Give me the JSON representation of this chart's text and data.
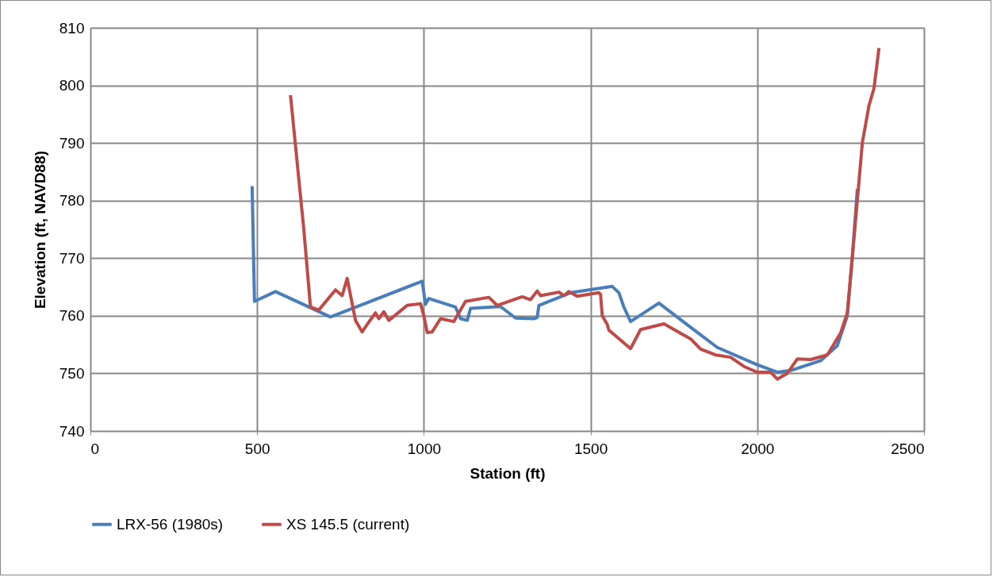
{
  "chart_data": {
    "type": "line",
    "xlabel": "Station (ft)",
    "ylabel": "Elevation (ft, NAVD88)",
    "xlim": [
      0,
      2500
    ],
    "xticks": [
      0,
      500,
      1000,
      1500,
      2000,
      2500
    ],
    "ylim": [
      740,
      810
    ],
    "yticks": [
      740,
      750,
      760,
      770,
      780,
      790,
      800,
      810
    ],
    "grid": true,
    "legend": "bottom",
    "series": [
      {
        "name": "LRX-56 (1980s)",
        "color": "#4a7ebb",
        "x": [
          485,
          492,
          555,
          720,
          995,
          1005,
          1015,
          1095,
          1110,
          1130,
          1140,
          1230,
          1275,
          1330,
          1340,
          1345,
          1440,
          1565,
          1585,
          1600,
          1620,
          1705,
          1800,
          1880,
          2000,
          2060,
          2100,
          2190,
          2240,
          2270,
          2285,
          2300
        ],
        "values": [
          782.5,
          762.5,
          764.2,
          759.8,
          766,
          762,
          763,
          761.5,
          759.5,
          759.2,
          761.3,
          761.6,
          759.6,
          759.5,
          759.7,
          761.8,
          764,
          765.1,
          764,
          761.5,
          759,
          762.2,
          758,
          754.5,
          751.5,
          750.2,
          750.5,
          752.2,
          754.8,
          760,
          770,
          782
        ]
      },
      {
        "name": "XS 145.5 (current)",
        "color": "#be4b48",
        "x": [
          600,
          640,
          660,
          685,
          735,
          755,
          770,
          795,
          815,
          830,
          855,
          865,
          880,
          895,
          950,
          990,
          1000,
          1010,
          1025,
          1050,
          1090,
          1125,
          1195,
          1220,
          1295,
          1320,
          1340,
          1350,
          1405,
          1420,
          1435,
          1460,
          1525,
          1530,
          1535,
          1550,
          1555,
          1620,
          1650,
          1720,
          1800,
          1830,
          1875,
          1920,
          1960,
          2000,
          2040,
          2060,
          2090,
          2120,
          2160,
          2210,
          2250,
          2270,
          2300,
          2315,
          2335,
          2350,
          2365
        ],
        "values": [
          798.3,
          775,
          761.5,
          761,
          764.5,
          763.5,
          766.5,
          759.2,
          757.2,
          758.5,
          760.5,
          759.5,
          760.7,
          759.2,
          761.8,
          762.1,
          760,
          757.1,
          757.2,
          759.5,
          759,
          762.5,
          763.2,
          761.8,
          763.3,
          762.8,
          764.3,
          763.5,
          764.1,
          763.5,
          764.2,
          763.4,
          764,
          763.7,
          760,
          758.5,
          757.5,
          754.3,
          757.6,
          758.6,
          756,
          754.2,
          753.2,
          752.8,
          751.2,
          750.2,
          750.2,
          749,
          750,
          752.5,
          752.4,
          753.2,
          757,
          760.5,
          780,
          790,
          796.5,
          799.5,
          806.5
        ]
      }
    ]
  }
}
